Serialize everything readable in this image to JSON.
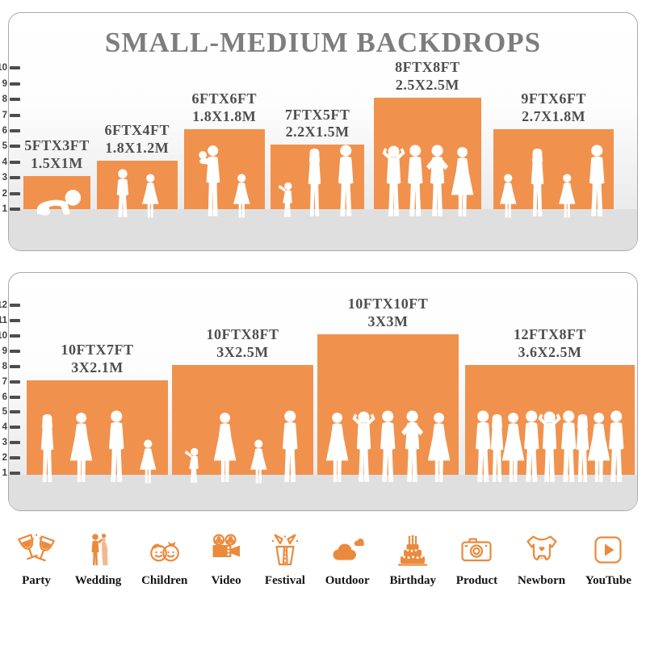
{
  "title": "SMALL-MEDIUM BACKDROPS",
  "colors": {
    "bar_orange": "#F0924D",
    "icon_orange": "#EB8A3C",
    "title_gray": "#7D7D7D",
    "label_gray": "#4E4E4E",
    "floor_gray": "#DFDFDF"
  },
  "panels": [
    {
      "ruler_labels": [
        "10",
        "9",
        "8",
        "7",
        "6",
        "5",
        "4",
        "3",
        "2",
        "1"
      ],
      "bars": [
        {
          "size_ft": "5FTX3FT",
          "size_m": "1.5X1M",
          "w_ft": 5,
          "h_ft": 3,
          "figures": [
            "baby"
          ]
        },
        {
          "size_ft": "6FTX4FT",
          "size_m": "1.8X1.2M",
          "w_ft": 6,
          "h_ft": 4,
          "figures": [
            "boy",
            "girl"
          ]
        },
        {
          "size_ft": "6FTX6FT",
          "size_m": "1.8X1.8M",
          "w_ft": 6,
          "h_ft": 6,
          "figures": [
            "woman-baby",
            "girl"
          ]
        },
        {
          "size_ft": "7FTX5FT",
          "size_m": "2.2X1.5M",
          "w_ft": 7,
          "h_ft": 5,
          "figures": [
            "toddler",
            "woman",
            "man"
          ]
        },
        {
          "size_ft": "8FTX8FT",
          "size_m": "2.5X2.5M",
          "w_ft": 8,
          "h_ft": 8,
          "figures": [
            "man-up",
            "man",
            "man-hips",
            "woman-dress"
          ]
        },
        {
          "size_ft": "9FTX6FT",
          "size_m": "2.7X1.8M",
          "w_ft": 9,
          "h_ft": 6,
          "figures": [
            "girl",
            "woman",
            "girl",
            "man"
          ]
        }
      ]
    },
    {
      "ruler_labels": [
        "12",
        "11",
        "10",
        "9",
        "8",
        "7",
        "6",
        "5",
        "4",
        "3",
        "2",
        "1"
      ],
      "bars": [
        {
          "size_ft": "10FTX7FT",
          "size_m": "3X2.1M",
          "w_ft": 10,
          "h_ft": 7,
          "figures": [
            "woman",
            "woman-dress",
            "man",
            "girl"
          ]
        },
        {
          "size_ft": "10FTX8FT",
          "size_m": "3X2.5M",
          "w_ft": 10,
          "h_ft": 8,
          "figures": [
            "toddler",
            "woman-dress",
            "girl",
            "man"
          ]
        },
        {
          "size_ft": "10FTX10FT",
          "size_m": "3X3M",
          "w_ft": 10,
          "h_ft": 10,
          "figures": [
            "woman-dress",
            "man-up",
            "man",
            "man-hips",
            "woman-dress"
          ]
        },
        {
          "size_ft": "12FTX8FT",
          "size_m": "3.6X2.5M",
          "w_ft": 12,
          "h_ft": 8,
          "figures": [
            "man",
            "woman",
            "woman-dress",
            "man",
            "man-up",
            "man",
            "woman",
            "woman-dress",
            "man"
          ]
        }
      ]
    }
  ],
  "categories": [
    {
      "label": "Party",
      "icon": "party-glasses-icon"
    },
    {
      "label": "Wedding",
      "icon": "wedding-couple-icon"
    },
    {
      "label": "Children",
      "icon": "children-faces-icon"
    },
    {
      "label": "Video",
      "icon": "video-camera-icon"
    },
    {
      "label": "Festival",
      "icon": "festival-gift-icon"
    },
    {
      "label": "Outdoor",
      "icon": "outdoor-cloud-icon"
    },
    {
      "label": "Birthday",
      "icon": "birthday-cake-icon"
    },
    {
      "label": "Product",
      "icon": "product-camera-icon"
    },
    {
      "label": "Newborn",
      "icon": "newborn-onesie-icon"
    },
    {
      "label": "YouTube",
      "icon": "youtube-play-icon"
    }
  ],
  "chart_data": [
    {
      "type": "bar",
      "title": "SMALL-MEDIUM BACKDROPS",
      "categories": [
        "5FTX3FT",
        "6FTX4FT",
        "6FTX6FT",
        "7FTX5FT",
        "8FTX8FT",
        "9FTX6FT"
      ],
      "series": [
        {
          "name": "height_ft",
          "values": [
            3,
            4,
            6,
            5,
            8,
            6
          ]
        },
        {
          "name": "width_ft",
          "values": [
            5,
            6,
            6,
            7,
            8,
            9
          ]
        }
      ],
      "metric_labels": [
        "1.5X1M",
        "1.8X1.2M",
        "1.8X1.8M",
        "2.2X1.5M",
        "2.5X2.5M",
        "2.7X1.8M"
      ],
      "ylabel": "feet",
      "ylim": [
        0,
        10
      ],
      "legend": "none",
      "grid": false
    },
    {
      "type": "bar",
      "title": "",
      "categories": [
        "10FTX7FT",
        "10FTX8FT",
        "10FTX10FT",
        "12FTX8FT"
      ],
      "series": [
        {
          "name": "height_ft",
          "values": [
            7,
            8,
            10,
            8
          ]
        },
        {
          "name": "width_ft",
          "values": [
            10,
            10,
            10,
            12
          ]
        }
      ],
      "metric_labels": [
        "3X2.1M",
        "3X2.5M",
        "3X3M",
        "3.6X2.5M"
      ],
      "ylabel": "feet",
      "ylim": [
        0,
        12
      ],
      "legend": "none",
      "grid": false
    }
  ]
}
